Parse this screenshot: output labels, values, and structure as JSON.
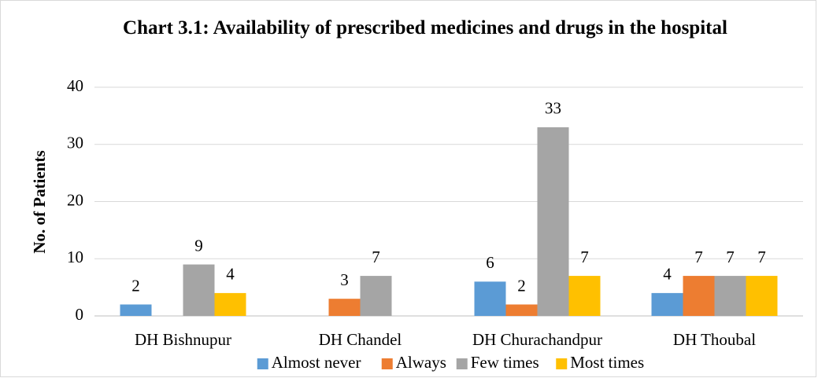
{
  "chart_data": {
    "type": "bar",
    "title": "Chart 3.1: Availability of prescribed medicines and drugs in the hospital",
    "y_label": "No. of Patients",
    "categories": [
      "DH Bishnupur",
      "DH Chandel",
      "DH Churachandpur",
      "DH Thoubal"
    ],
    "series": [
      {
        "name": "Almost never",
        "color": "#5b9bd5",
        "values": [
          2,
          null,
          6,
          4
        ]
      },
      {
        "name": "Always",
        "color": "#ed7d31",
        "values": [
          null,
          3,
          2,
          7
        ]
      },
      {
        "name": "Few times",
        "color": "#a5a5a5",
        "values": [
          9,
          7,
          33,
          7
        ]
      },
      {
        "name": "Most times",
        "color": "#ffc000",
        "values": [
          4,
          null,
          7,
          7
        ]
      }
    ],
    "ylim": [
      0,
      40
    ],
    "yticks": [
      0,
      10,
      20,
      30,
      40
    ],
    "grid": true,
    "legend": "bottom"
  }
}
